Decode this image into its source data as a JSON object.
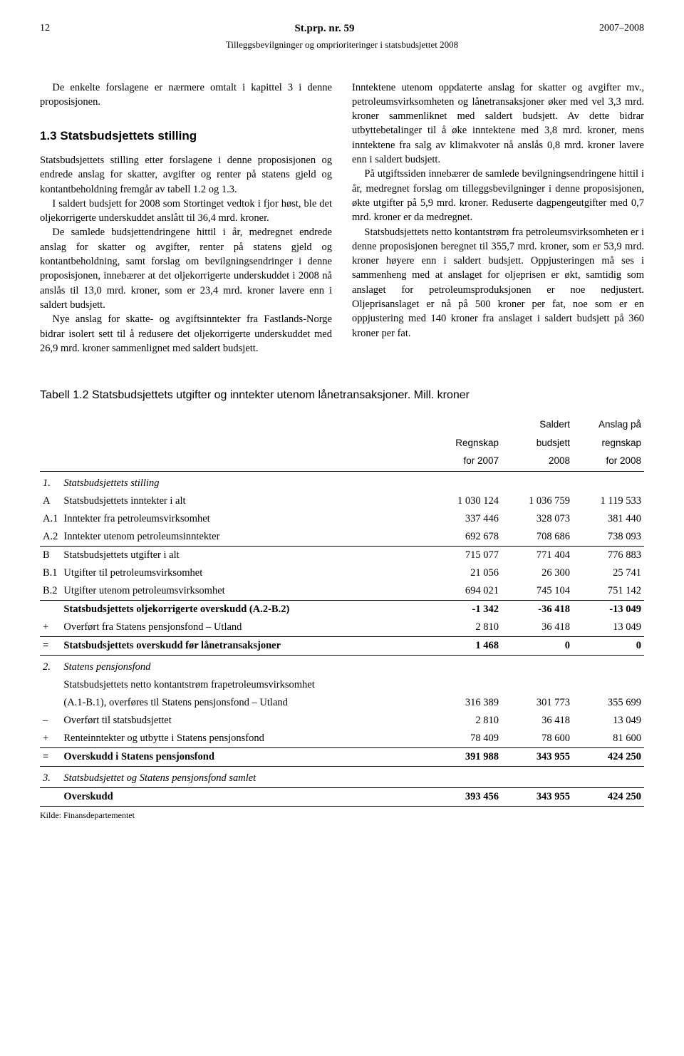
{
  "header": {
    "page_number": "12",
    "center": "St.prp. nr. 59",
    "right": "2007–2008",
    "subtitle": "Tilleggsbevilgninger og omprioriteringer i statsbudsjettet 2008"
  },
  "left_col": {
    "intro": "De enkelte forslagene er nærmere omtalt i kapittel 3 i denne proposisjonen.",
    "heading": "1.3 Statsbudsjettets stilling",
    "p1": "Statsbudsjettets stilling etter forslagene i denne proposisjonen og endrede anslag for skatter, avgifter og renter på statens gjeld og kontantbeholdning fremgår av tabell 1.2 og 1.3.",
    "p2": "I saldert budsjett for 2008 som Stortinget vedtok i fjor høst, ble det oljekorrigerte underskuddet anslått til 36,4 mrd. kroner.",
    "p3": "De samlede budsjettendringene hittil i år, medregnet endrede anslag for skatter og avgifter, renter på statens gjeld og kontantbeholdning, samt forslag om bevilgningsendringer i denne proposisjonen, innebærer at det oljekorrigerte underskuddet i 2008 nå anslås til 13,0 mrd. kroner, som er 23,4 mrd. kroner lavere enn i saldert budsjett.",
    "p4": "Nye anslag for skatte- og avgiftsinntekter fra Fastlands-Norge bidrar isolert sett til å redusere det oljekorrigerte underskuddet med 26,9 mrd. kroner sammenlignet med saldert budsjett."
  },
  "right_col": {
    "p1": "Inntektene utenom oppdaterte anslag for skatter og avgifter mv., petroleumsvirksomheten og lånetransaksjoner øker med vel 3,3 mrd. kroner sammenliknet med saldert budsjett. Av dette bidrar utbyttebetalinger til å øke inntektene med 3,8 mrd. kroner, mens inntektene fra salg av klimakvoter nå anslås 0,8 mrd. kroner lavere enn i saldert budsjett.",
    "p2": "På utgiftssiden innebærer de samlede bevilgningsendringene hittil i år, medregnet forslag om tilleggsbevilgninger i denne proposisjonen, økte utgifter på 5,9 mrd. kroner. Reduserte dagpengeutgifter med 0,7 mrd. kroner er da medregnet.",
    "p3": "Statsbudsjettets netto kontantstrøm fra petroleumsvirksomheten er i denne proposisjonen beregnet til 355,7 mrd. kroner, som er 53,9 mrd. kroner høyere enn i saldert budsjett. Oppjusteringen må ses i sammenheng med at anslaget for oljeprisen er økt, samtidig som anslaget for petroleumsproduksjonen er noe nedjustert. Oljeprisanslaget er nå på 500 kroner per fat, noe som er en oppjustering med 140 kroner fra anslaget i saldert budsjett på 360 kroner per fat."
  },
  "table": {
    "title": "Tabell 1.2 Statsbudsjettets utgifter og inntekter utenom lånetransaksjoner. Mill. kroner",
    "col_headers": {
      "c1_l1": "Regnskap",
      "c1_l2": "for 2007",
      "c2_l1": "Saldert",
      "c2_l2": "budsjett",
      "c2_l3": "2008",
      "c3_l1": "Anslag på",
      "c3_l2": "regnskap",
      "c3_l3": "for 2008"
    },
    "s1": {
      "num": "1.",
      "title": "Statsbudsjettets stilling",
      "rows": [
        {
          "k": "A",
          "t": "Statsbudsjettets inntekter i alt",
          "v": [
            "1 030 124",
            "1 036 759",
            "1 119 533"
          ]
        },
        {
          "k": "A.1",
          "t": "Inntekter fra petroleumsvirksomhet",
          "v": [
            "337 446",
            "328 073",
            "381 440"
          ]
        },
        {
          "k": "A.2",
          "t": "Inntekter utenom petroleumsinntekter",
          "v": [
            "692 678",
            "708 686",
            "738 093"
          ]
        },
        {
          "k": "B",
          "t": "Statsbudsjettets utgifter i alt",
          "v": [
            "715 077",
            "771 404",
            "776 883"
          ]
        },
        {
          "k": "B.1",
          "t": "Utgifter til petroleumsvirksomhet",
          "v": [
            "21 056",
            "26 300",
            "25 741"
          ]
        },
        {
          "k": "B.2",
          "t": "Utgifter utenom petroleumsvirksomhet",
          "v": [
            "694 021",
            "745 104",
            "751 142"
          ]
        }
      ],
      "olj": {
        "t": "Statsbudsjettets oljekorrigerte overskudd (A.2-B.2)",
        "v": [
          "-1 342",
          "-36 418",
          "-13 049"
        ]
      },
      "overf": {
        "k": "+",
        "t": "Overført fra Statens pensjonsfond – Utland",
        "v": [
          "2 810",
          "36 418",
          "13 049"
        ]
      },
      "eq": {
        "k": "=",
        "t": "Statsbudsjettets overskudd før lånetransaksjoner",
        "v": [
          "1 468",
          "0",
          "0"
        ]
      }
    },
    "s2": {
      "num": "2.",
      "title": "Statens pensjonsfond",
      "desc1": "Statsbudsjettets netto kontantstrøm frapetroleumsvirksomhet",
      "desc2": "(A.1-B.1), overføres til Statens pensjonsfond – Utland",
      "desc_v": [
        "316 389",
        "301 773",
        "355 699"
      ],
      "r2": {
        "k": "–",
        "t": "Overført til statsbudsjettet",
        "v": [
          "2 810",
          "36 418",
          "13 049"
        ]
      },
      "r3": {
        "k": "+",
        "t": "Renteinntekter og utbytte i Statens pensjonsfond",
        "v": [
          "78 409",
          "78 600",
          "81 600"
        ]
      },
      "eq": {
        "k": "=",
        "t": "Overskudd i Statens pensjonsfond",
        "v": [
          "391 988",
          "343 955",
          "424 250"
        ]
      }
    },
    "s3": {
      "num": "3.",
      "title": "Statsbudsjettet og Statens pensjonsfond samlet",
      "eq": {
        "t": "Overskudd",
        "v": [
          "393 456",
          "343 955",
          "424 250"
        ]
      }
    },
    "source": "Kilde: Finansdepartementet"
  }
}
